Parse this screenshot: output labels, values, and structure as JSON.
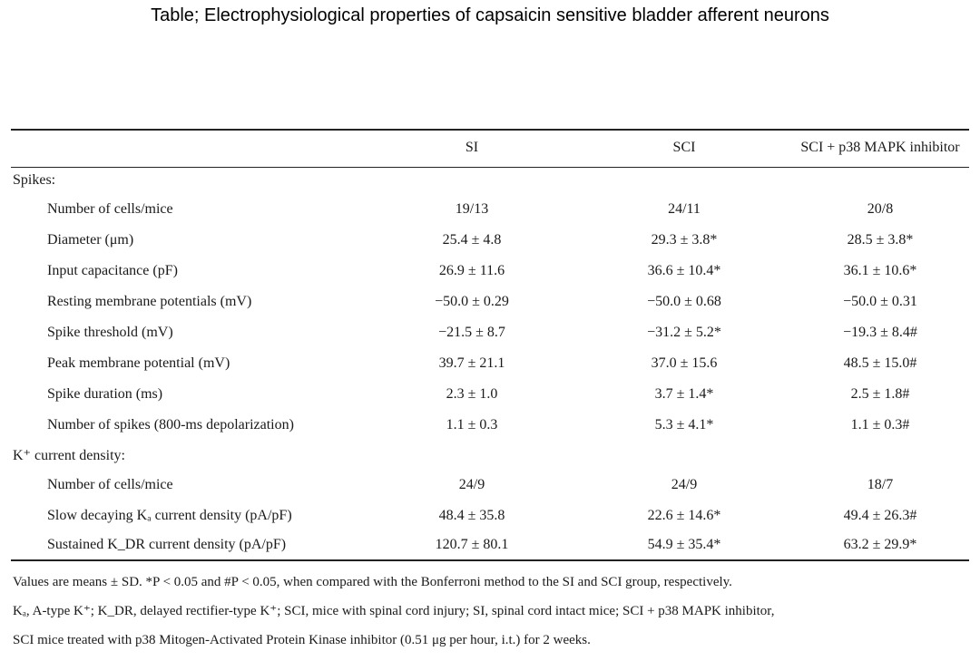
{
  "title": "Table; Electrophysiological properties of capsaicin sensitive bladder afferent neurons",
  "header": [
    "SI",
    "SCI",
    "SCI + p38 MAPK inhibitor"
  ],
  "sections": [
    {
      "label": "Spikes:",
      "rows": [
        {
          "label": "Number of cells/mice",
          "values": [
            "19/13",
            "24/11",
            "20/8"
          ]
        },
        {
          "label": "Diameter (μm)",
          "values": [
            "25.4 ± 4.8",
            "29.3 ± 3.8*",
            "28.5 ± 3.8*"
          ]
        },
        {
          "label": "Input capacitance (pF)",
          "values": [
            "26.9 ± 11.6",
            "36.6 ± 10.4*",
            "36.1 ± 10.6*"
          ]
        },
        {
          "label": "Resting membrane potentials (mV)",
          "values": [
            "−50.0 ± 0.29",
            "−50.0 ± 0.68",
            "−50.0 ± 0.31"
          ]
        },
        {
          "label": "Spike threshold (mV)",
          "values": [
            "−21.5 ± 8.7",
            "−31.2 ± 5.2*",
            "−19.3 ± 8.4#"
          ]
        },
        {
          "label": "Peak membrane potential (mV)",
          "values": [
            "39.7 ± 21.1",
            "37.0 ± 15.6",
            "48.5 ± 15.0#"
          ]
        },
        {
          "label": "Spike duration (ms)",
          "values": [
            "2.3 ± 1.0",
            "3.7 ± 1.4*",
            "2.5 ± 1.8#"
          ]
        },
        {
          "label": "Number of spikes (800-ms depolarization)",
          "values": [
            "1.1 ± 0.3",
            "5.3 ± 4.1*",
            "1.1 ± 0.3#"
          ]
        }
      ]
    },
    {
      "label": "K⁺ current density:",
      "rows": [
        {
          "label": "Number of cells/mice",
          "values": [
            "24/9",
            "24/9",
            "18/7"
          ]
        },
        {
          "label": "Slow decaying Kₐ current density (pA/pF)",
          "values": [
            "48.4 ± 35.8",
            "22.6 ± 14.6*",
            "49.4 ± 26.3#"
          ]
        },
        {
          "label": "Sustained K_DR current density (pA/pF)",
          "values": [
            "120.7 ± 80.1",
            "54.9 ± 35.4*",
            "63.2 ± 29.9*"
          ]
        }
      ]
    }
  ],
  "notes": [
    "Values are means ± SD.   *P < 0.05 and #P < 0.05, when compared with the Bonferroni method to the SI and SCI group, respectively.",
    "Kₐ, A-type K⁺; K_DR, delayed rectifier-type K⁺; SCI, mice with spinal cord injury; SI, spinal cord intact mice; SCI + p38 MAPK inhibitor,",
    "SCI mice treated with p38 Mitogen-Activated Protein Kinase inhibitor (0.51 μg per hour, i.t.) for 2 weeks."
  ]
}
